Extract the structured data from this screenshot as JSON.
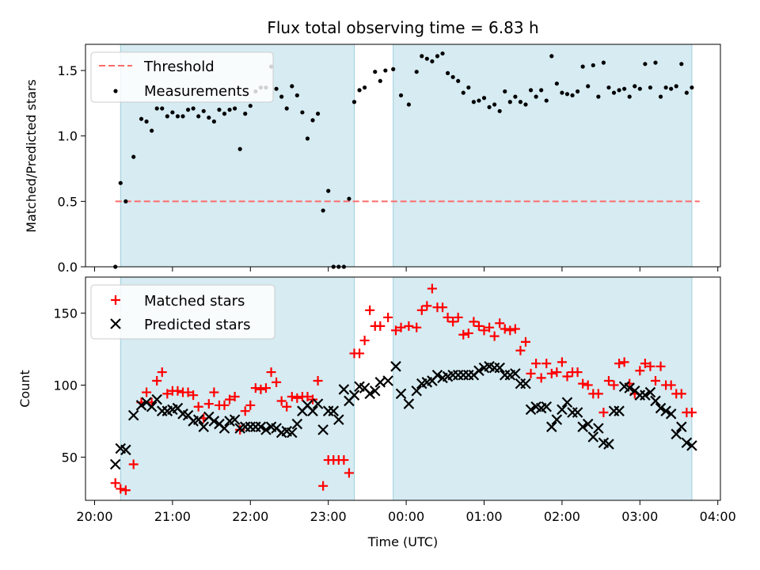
{
  "chart_data": [
    {
      "type": "scatter",
      "title": "Flux total observing time = 6.83 h",
      "xlabel": "",
      "ylabel": "Matched/Predicted stars",
      "xlim": [
        "19:53",
        "04:02"
      ],
      "ylim": [
        0,
        1.7
      ],
      "yticks": [
        {
          "v": 0.0,
          "label": "0.0"
        },
        {
          "v": 0.5,
          "label": "0.5"
        },
        {
          "v": 1.0,
          "label": "1.0"
        },
        {
          "v": 1.5,
          "label": "1.5"
        }
      ],
      "threshold": 0.5,
      "threshold_range": [
        "20:16",
        "03:46"
      ],
      "shaded_intervals": [
        [
          "20:20",
          "23:20"
        ],
        [
          "23:50",
          "03:40"
        ]
      ],
      "legend": {
        "placement": "upper-left",
        "entries": [
          "Threshold",
          "Measurements"
        ]
      },
      "series": [
        {
          "name": "Measurements",
          "color": "#000000",
          "x": [
            "20:16",
            "20:20",
            "20:24",
            "20:30",
            "20:36",
            "20:40",
            "20:44",
            "20:48",
            "20:52",
            "20:56",
            "21:00",
            "21:04",
            "21:08",
            "21:12",
            "21:16",
            "21:20",
            "21:24",
            "21:28",
            "21:32",
            "21:36",
            "21:40",
            "21:44",
            "21:48",
            "21:52",
            "21:56",
            "22:00",
            "22:04",
            "22:08",
            "22:12",
            "22:16",
            "22:20",
            "22:24",
            "22:28",
            "22:32",
            "22:36",
            "22:40",
            "22:44",
            "22:48",
            "22:52",
            "22:56",
            "23:00",
            "23:04",
            "23:08",
            "23:12",
            "23:16",
            "23:20",
            "23:24",
            "23:28",
            "23:36",
            "23:40",
            "23:44",
            "23:50",
            "23:56",
            "00:02",
            "00:08",
            "00:12",
            "00:16",
            "00:20",
            "00:24",
            "00:28",
            "00:32",
            "00:36",
            "00:40",
            "00:44",
            "00:48",
            "00:52",
            "00:56",
            "01:00",
            "01:04",
            "01:08",
            "01:12",
            "01:16",
            "01:20",
            "01:24",
            "01:28",
            "01:32",
            "01:36",
            "01:40",
            "01:44",
            "01:48",
            "01:52",
            "01:56",
            "02:00",
            "02:04",
            "02:08",
            "02:12",
            "02:16",
            "02:20",
            "02:24",
            "02:28",
            "02:32",
            "02:36",
            "02:40",
            "02:44",
            "02:48",
            "02:52",
            "02:56",
            "03:00",
            "03:04",
            "03:08",
            "03:12",
            "03:16",
            "03:20",
            "03:24",
            "03:28",
            "03:32",
            "03:36",
            "03:40"
          ],
          "y": [
            0.0,
            0.64,
            0.5,
            0.84,
            1.13,
            1.11,
            1.04,
            1.21,
            1.21,
            1.15,
            1.18,
            1.15,
            1.15,
            1.2,
            1.21,
            1.15,
            1.19,
            1.14,
            1.11,
            1.2,
            1.17,
            1.2,
            1.21,
            0.9,
            1.17,
            1.23,
            1.34,
            1.37,
            1.37,
            1.53,
            1.36,
            1.3,
            1.21,
            1.38,
            1.31,
            1.18,
            0.98,
            1.12,
            1.17,
            0.43,
            0.58,
            0.0,
            0.0,
            0.0,
            0.52,
            1.26,
            1.35,
            1.37,
            1.49,
            1.42,
            1.5,
            1.51,
            1.31,
            1.24,
            1.49,
            1.61,
            1.59,
            1.57,
            1.61,
            1.63,
            1.48,
            1.45,
            1.42,
            1.33,
            1.37,
            1.26,
            1.27,
            1.29,
            1.22,
            1.24,
            1.19,
            1.34,
            1.26,
            1.3,
            1.26,
            1.24,
            1.35,
            1.3,
            1.35,
            1.27,
            1.61,
            1.4,
            1.33,
            1.32,
            1.31,
            1.34,
            1.53,
            1.38,
            1.54,
            1.3,
            1.56,
            1.37,
            1.33,
            1.35,
            1.36,
            1.3,
            1.38,
            1.36,
            1.55,
            1.37,
            1.56,
            1.3,
            1.37,
            1.36,
            1.38,
            1.55,
            1.33,
            1.37
          ]
        }
      ]
    },
    {
      "type": "scatter",
      "title": "",
      "xlabel": "Time (UTC)",
      "ylabel": "Count",
      "xlim": [
        "19:53",
        "04:02"
      ],
      "ylim": [
        20,
        175
      ],
      "xticks": [
        "20:00",
        "21:00",
        "22:00",
        "23:00",
        "00:00",
        "01:00",
        "02:00",
        "03:00",
        "04:00"
      ],
      "yticks": [
        {
          "v": 50,
          "label": "50"
        },
        {
          "v": 100,
          "label": "100"
        },
        {
          "v": 150,
          "label": "150"
        }
      ],
      "shaded_intervals": [
        [
          "20:20",
          "23:20"
        ],
        [
          "23:50",
          "03:40"
        ]
      ],
      "legend": {
        "placement": "upper-left",
        "entries": [
          "Matched stars",
          "Predicted stars"
        ]
      },
      "series": [
        {
          "name": "Matched stars",
          "marker": "plus",
          "color": "#ff0000",
          "x": [
            "20:16",
            "20:20",
            "20:24",
            "20:30",
            "20:36",
            "20:40",
            "20:44",
            "20:48",
            "20:52",
            "20:56",
            "21:00",
            "21:04",
            "21:08",
            "21:12",
            "21:16",
            "21:20",
            "21:24",
            "21:28",
            "21:32",
            "21:36",
            "21:40",
            "21:44",
            "21:48",
            "21:52",
            "21:56",
            "22:00",
            "22:04",
            "22:08",
            "22:12",
            "22:16",
            "22:20",
            "22:24",
            "22:28",
            "22:32",
            "22:36",
            "22:40",
            "22:44",
            "22:48",
            "22:52",
            "22:56",
            "23:00",
            "23:04",
            "23:08",
            "23:12",
            "23:16",
            "23:20",
            "23:24",
            "23:28",
            "23:32",
            "23:36",
            "23:40",
            "23:46",
            "23:52",
            "23:56",
            "00:02",
            "00:08",
            "00:12",
            "00:16",
            "00:20",
            "00:24",
            "00:28",
            "00:32",
            "00:36",
            "00:40",
            "00:44",
            "00:48",
            "00:52",
            "00:56",
            "01:00",
            "01:04",
            "01:08",
            "01:12",
            "01:16",
            "01:20",
            "01:24",
            "01:28",
            "01:32",
            "01:36",
            "01:40",
            "01:44",
            "01:48",
            "01:52",
            "01:56",
            "02:00",
            "02:04",
            "02:08",
            "02:12",
            "02:16",
            "02:20",
            "02:24",
            "02:28",
            "02:32",
            "02:36",
            "02:40",
            "02:44",
            "02:48",
            "02:52",
            "02:56",
            "03:00",
            "03:04",
            "03:08",
            "03:12",
            "03:16",
            "03:20",
            "03:24",
            "03:28",
            "03:32",
            "03:36",
            "03:40"
          ],
          "y": [
            32,
            28,
            27,
            45,
            88,
            95,
            88,
            103,
            109,
            94,
            96,
            96,
            95,
            95,
            93,
            85,
            77,
            87,
            95,
            86,
            86,
            90,
            92,
            69,
            82,
            86,
            98,
            97,
            98,
            109,
            102,
            89,
            85,
            92,
            91,
            92,
            92,
            90,
            103,
            30,
            48,
            48,
            48,
            48,
            39,
            122,
            122,
            131,
            152,
            141,
            141,
            147,
            138,
            140,
            141,
            140,
            152,
            155,
            167,
            154,
            154,
            147,
            144,
            147,
            135,
            136,
            144,
            141,
            138,
            140,
            134,
            143,
            139,
            138,
            139,
            124,
            130,
            108,
            115,
            105,
            115,
            108,
            109,
            116,
            106,
            109,
            109,
            101,
            100,
            94,
            94,
            81,
            103,
            100,
            115,
            116,
            101,
            94,
            110,
            115,
            113,
            103,
            113,
            100,
            100,
            94,
            94,
            81,
            81
          ]
        },
        {
          "name": "Predicted stars",
          "marker": "x",
          "color": "#000000",
          "x": [
            "20:16",
            "20:20",
            "20:24",
            "20:30",
            "20:36",
            "20:40",
            "20:44",
            "20:48",
            "20:52",
            "20:56",
            "21:00",
            "21:04",
            "21:08",
            "21:12",
            "21:16",
            "21:20",
            "21:24",
            "21:28",
            "21:32",
            "21:36",
            "21:40",
            "21:44",
            "21:48",
            "21:52",
            "21:56",
            "22:00",
            "22:04",
            "22:08",
            "22:12",
            "22:16",
            "22:20",
            "22:24",
            "22:28",
            "22:32",
            "22:36",
            "22:40",
            "22:44",
            "22:48",
            "22:52",
            "22:56",
            "23:00",
            "23:04",
            "23:08",
            "23:12",
            "23:16",
            "23:20",
            "23:24",
            "23:28",
            "23:32",
            "23:36",
            "23:40",
            "23:46",
            "23:52",
            "23:56",
            "00:02",
            "00:08",
            "00:12",
            "00:16",
            "00:20",
            "00:24",
            "00:28",
            "00:32",
            "00:36",
            "00:40",
            "00:44",
            "00:48",
            "00:52",
            "00:56",
            "01:00",
            "01:04",
            "01:08",
            "01:12",
            "01:16",
            "01:20",
            "01:24",
            "01:28",
            "01:32",
            "01:36",
            "01:40",
            "01:44",
            "01:48",
            "01:52",
            "01:56",
            "02:00",
            "02:04",
            "02:08",
            "02:12",
            "02:16",
            "02:20",
            "02:24",
            "02:28",
            "02:32",
            "02:36",
            "02:40",
            "02:44",
            "02:48",
            "02:52",
            "02:56",
            "03:00",
            "03:04",
            "03:08",
            "03:12",
            "03:16",
            "03:20",
            "03:24",
            "03:28",
            "03:32",
            "03:36",
            "03:40"
          ],
          "y": [
            45,
            56,
            55,
            79,
            86,
            88,
            85,
            90,
            82,
            82,
            83,
            84,
            80,
            79,
            75,
            76,
            71,
            78,
            75,
            73,
            70,
            75,
            76,
            70,
            71,
            71,
            71,
            71,
            69,
            71,
            70,
            67,
            68,
            67,
            73,
            82,
            86,
            82,
            87,
            69,
            82,
            82,
            76,
            97,
            89,
            93,
            99,
            98,
            94,
            96,
            102,
            103,
            113,
            94,
            87,
            96,
            101,
            102,
            103,
            107,
            105,
            106,
            107,
            107,
            107,
            107,
            107,
            110,
            112,
            113,
            112,
            112,
            107,
            107,
            108,
            101,
            101,
            83,
            85,
            84,
            85,
            71,
            76,
            83,
            88,
            81,
            81,
            71,
            73,
            64,
            70,
            60,
            59,
            82,
            82,
            99,
            98,
            96,
            93,
            93,
            95,
            89,
            84,
            82,
            80,
            66,
            71,
            60,
            58
          ]
        }
      ]
    }
  ]
}
